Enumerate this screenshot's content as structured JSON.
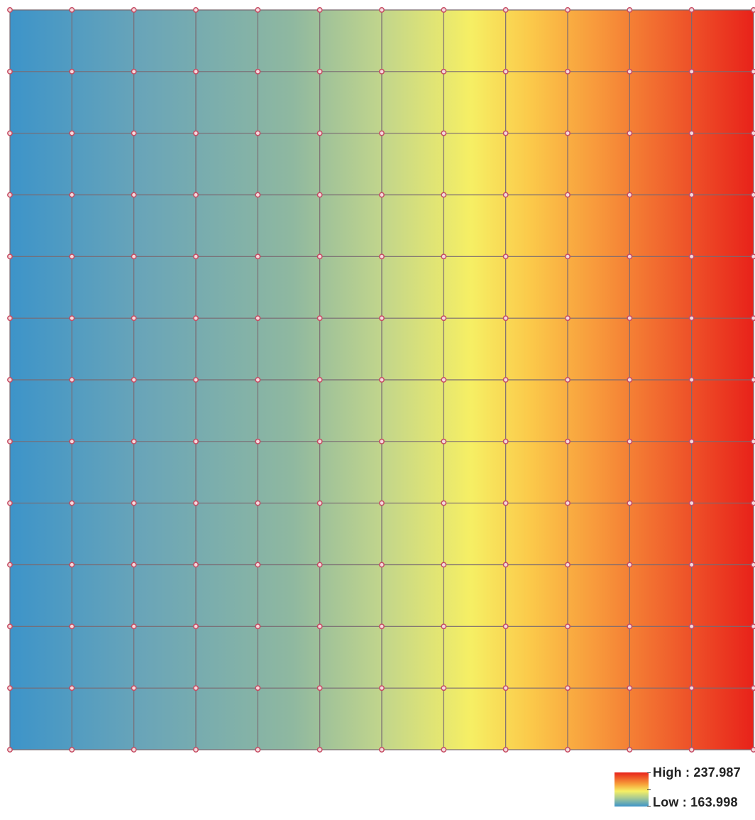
{
  "raster": {
    "ramp_colors": [
      "#3d94c9",
      "#6aa5b8",
      "#8fb8a0",
      "#c1d58c",
      "#f6ef64",
      "#fbc94a",
      "#f7933a",
      "#ef5a2b",
      "#e8221a"
    ],
    "grid_rows": 12,
    "grid_cols": 12,
    "grid_line_color": "#7a6a72",
    "point_color": "#c64b62"
  },
  "legend": {
    "high_label": "High : 237.987",
    "low_label": "Low : 163.998"
  }
}
